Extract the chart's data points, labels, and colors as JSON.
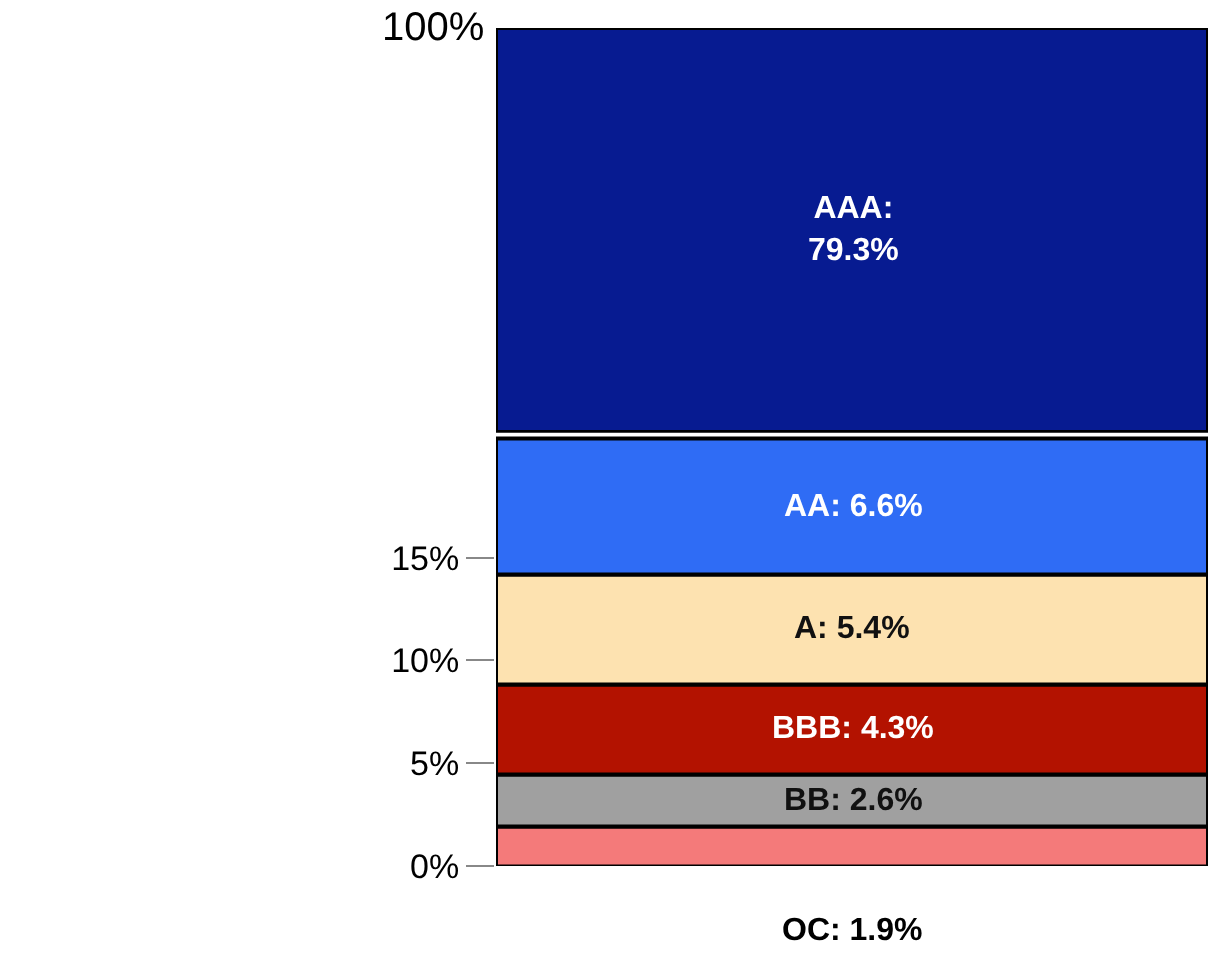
{
  "chart_data": {
    "type": "bar",
    "stacked": true,
    "categories": [
      null
    ],
    "tick_labels": "y",
    "series": [
      {
        "color": "#f47a7a",
        "values": [
          1.9
        ],
        "value_labels": [
          "OC: 1.9%"
        ]
      },
      {
        "color": "#a0a0a0",
        "values": [
          2.6
        ],
        "value_labels": [
          "BB: 2.6%"
        ]
      },
      {
        "color": "#b31200",
        "values": [
          4.3
        ],
        "value_labels": [
          "BBB: 4.3%"
        ]
      },
      {
        "color": "#fde2b0",
        "values": [
          5.4
        ],
        "value_labels": [
          "A: 5.4%"
        ]
      },
      {
        "color": "#2f6cf5",
        "values": [
          6.6
        ],
        "value_labels": [
          "AA: 6.6%"
        ]
      },
      {
        "color": "#071b91",
        "values": [
          79.3
        ],
        "value_labels": [
          "AAA:\n79.3%"
        ],
        "axis": "y2"
      }
    ],
    "ylim": [
      0,
      21
    ],
    "yticks": [
      {
        "value": 0,
        "label": "0%"
      },
      {
        "value": 5,
        "label": "5%"
      },
      {
        "value": 10,
        "label": "10%"
      },
      {
        "value": 15,
        "label": "15%"
      }
    ],
    "annotations": [
      "100%"
    ]
  }
}
